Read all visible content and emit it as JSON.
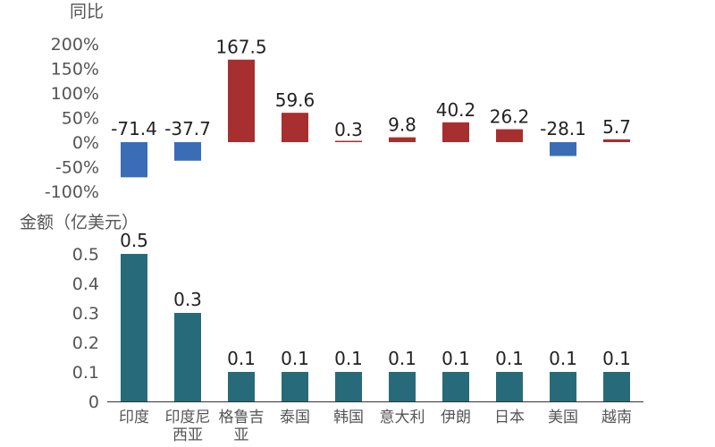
{
  "chart_data": [
    {
      "type": "bar",
      "ylabel": "同比",
      "categories": [
        "印度",
        "印度尼西亚",
        "格鲁吉亚",
        "泰国",
        "韩国",
        "意大利",
        "伊朗",
        "日本",
        "美国",
        "越南"
      ],
      "values": [
        -71.4,
        -37.7,
        167.5,
        59.6,
        0.3,
        9.8,
        40.2,
        26.2,
        -28.1,
        5.7
      ],
      "ylim": [
        -100,
        200
      ],
      "yticks": [
        "200%",
        "150%",
        "100%",
        "50%",
        "0%",
        "-50%",
        "-100%"
      ],
      "colors": {
        "positive": "#a82f2f",
        "negative": "#3a6db5"
      }
    },
    {
      "type": "bar",
      "ylabel": "金额（亿美元）",
      "categories": [
        "印度",
        "印度尼西亚",
        "格鲁吉亚",
        "泰国",
        "韩国",
        "意大利",
        "伊朗",
        "日本",
        "美国",
        "越南"
      ],
      "category_lines": [
        [
          "印度"
        ],
        [
          "印度尼",
          "西亚"
        ],
        [
          "格鲁吉",
          "亚"
        ],
        [
          "泰国"
        ],
        [
          "韩国"
        ],
        [
          "意大利"
        ],
        [
          "伊朗"
        ],
        [
          "日本"
        ],
        [
          "美国"
        ],
        [
          "越南"
        ]
      ],
      "values": [
        0.5,
        0.3,
        0.1,
        0.1,
        0.1,
        0.1,
        0.1,
        0.1,
        0.1,
        0.1
      ],
      "ylim": [
        0,
        0.5
      ],
      "yticks": [
        "0.5",
        "0.4",
        "0.3",
        "0.2",
        "0.1",
        "0"
      ],
      "colors": {
        "bar": "#276b7a"
      }
    }
  ]
}
